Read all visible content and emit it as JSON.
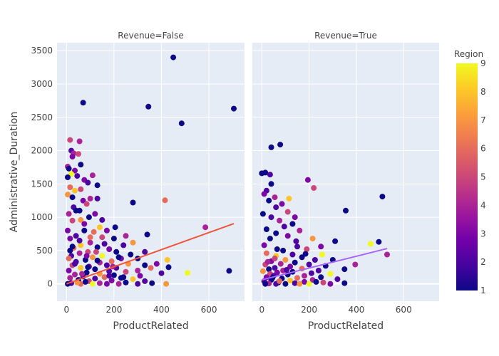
{
  "chart_data": {
    "type": "scatter",
    "xlabel": "ProductRelated",
    "ylabel": "Administrative_Duration",
    "xlim": [
      -40,
      750
    ],
    "ylim": [
      -260,
      3620
    ],
    "xticks": [
      0,
      200,
      400,
      600
    ],
    "yticks": [
      0,
      500,
      1000,
      1500,
      2000,
      2500,
      3000,
      3500
    ],
    "grid": true,
    "colorbar": {
      "title": "Region",
      "min": 1,
      "max": 9,
      "ticks": [
        1,
        2,
        3,
        4,
        5,
        6,
        7,
        8,
        9
      ]
    },
    "colors": {
      "plot_bg": "#e5ecf6",
      "grid": "#ffffff",
      "colorscale": [
        "#0d0887",
        "#46039f",
        "#7201a8",
        "#9c179e",
        "#bd3786",
        "#d8576b",
        "#ed7953",
        "#fb9f3a",
        "#fdca26",
        "#f0f921"
      ]
    },
    "facets": [
      {
        "title": "Revenue=False",
        "trendline": {
          "x": [
            0,
            705
          ],
          "y": [
            0,
            905
          ],
          "color": "#ef553b"
        },
        "points": [
          [
            450,
            3400,
            1
          ],
          [
            70,
            2720,
            1
          ],
          [
            345,
            2660,
            1
          ],
          [
            705,
            2630,
            1
          ],
          [
            485,
            2410,
            1
          ],
          [
            15,
            2160,
            5
          ],
          [
            55,
            2140,
            4
          ],
          [
            20,
            2000,
            2
          ],
          [
            30,
            1960,
            4
          ],
          [
            50,
            1950,
            5
          ],
          [
            25,
            1910,
            3
          ],
          [
            60,
            1790,
            1
          ],
          [
            5,
            1760,
            4
          ],
          [
            10,
            1730,
            1
          ],
          [
            35,
            1700,
            3
          ],
          [
            20,
            1650,
            9
          ],
          [
            110,
            1630,
            4
          ],
          [
            45,
            1620,
            2
          ],
          [
            5,
            1600,
            1
          ],
          [
            75,
            1560,
            3
          ],
          [
            90,
            1520,
            2
          ],
          [
            130,
            1480,
            1
          ],
          [
            15,
            1450,
            6
          ],
          [
            60,
            1420,
            5
          ],
          [
            35,
            1400,
            8
          ],
          [
            130,
            1280,
            2
          ],
          [
            415,
            1255,
            6
          ],
          [
            280,
            1220,
            1
          ],
          [
            100,
            1280,
            4
          ],
          [
            5,
            1340,
            7
          ],
          [
            25,
            1300,
            1
          ],
          [
            70,
            1250,
            3
          ],
          [
            85,
            1200,
            5
          ],
          [
            30,
            1150,
            2
          ],
          [
            55,
            1100,
            1
          ],
          [
            10,
            1050,
            4
          ],
          [
            120,
            1050,
            3
          ],
          [
            95,
            1000,
            1
          ],
          [
            150,
            960,
            2
          ],
          [
            60,
            960,
            7
          ],
          [
            25,
            950,
            5
          ],
          [
            205,
            850,
            1
          ],
          [
            585,
            850,
            4
          ],
          [
            170,
            800,
            3
          ],
          [
            75,
            800,
            1
          ],
          [
            115,
            780,
            6
          ],
          [
            340,
            740,
            1
          ],
          [
            250,
            720,
            4
          ],
          [
            40,
            720,
            2
          ],
          [
            150,
            700,
            5
          ],
          [
            200,
            680,
            1
          ],
          [
            15,
            680,
            3
          ],
          [
            280,
            620,
            7
          ],
          [
            100,
            620,
            4
          ],
          [
            240,
            580,
            2
          ],
          [
            60,
            580,
            8
          ],
          [
            130,
            550,
            1
          ],
          [
            30,
            540,
            6
          ],
          [
            180,
            520,
            3
          ],
          [
            210,
            480,
            1
          ],
          [
            90,
            480,
            5
          ],
          [
            330,
            480,
            2
          ],
          [
            55,
            460,
            4
          ],
          [
            270,
            440,
            1
          ],
          [
            150,
            420,
            9
          ],
          [
            20,
            420,
            2
          ],
          [
            110,
            400,
            7
          ],
          [
            425,
            360,
            8
          ],
          [
            230,
            380,
            3
          ],
          [
            300,
            380,
            1
          ],
          [
            80,
            360,
            1
          ],
          [
            190,
            340,
            6
          ],
          [
            40,
            330,
            2
          ],
          [
            140,
            320,
            4
          ],
          [
            380,
            300,
            3
          ],
          [
            260,
            300,
            7
          ],
          [
            330,
            280,
            1
          ],
          [
            170,
            280,
            2
          ],
          [
            25,
            280,
            5
          ],
          [
            95,
            260,
            3
          ],
          [
            430,
            250,
            1
          ],
          [
            355,
            240,
            6
          ],
          [
            210,
            240,
            2
          ],
          [
            60,
            240,
            8
          ],
          [
            120,
            220,
            1
          ],
          [
            300,
            200,
            4
          ],
          [
            685,
            195,
            1
          ],
          [
            10,
            200,
            3
          ],
          [
            180,
            190,
            2
          ],
          [
            250,
            180,
            5
          ],
          [
            510,
            165,
            9
          ],
          [
            85,
            170,
            1
          ],
          [
            400,
            160,
            2
          ],
          [
            140,
            150,
            7
          ],
          [
            35,
            140,
            4
          ],
          [
            200,
            130,
            1
          ],
          [
            310,
            120,
            3
          ],
          [
            70,
            110,
            2
          ],
          [
            160,
            100,
            6
          ],
          [
            230,
            90,
            1
          ],
          [
            15,
            90,
            4
          ],
          [
            120,
            80,
            2
          ],
          [
            280,
            70,
            8
          ],
          [
            50,
            60,
            1
          ],
          [
            190,
            50,
            3
          ],
          [
            330,
            40,
            2
          ],
          [
            95,
            40,
            5
          ],
          [
            420,
            0,
            7
          ],
          [
            250,
            20,
            1
          ],
          [
            140,
            10,
            4
          ],
          [
            20,
            10,
            2
          ],
          [
            360,
            10,
            1
          ],
          [
            60,
            0,
            6
          ],
          [
            170,
            0,
            3
          ],
          [
            300,
            0,
            2
          ],
          [
            5,
            0,
            1
          ],
          [
            110,
            0,
            9
          ],
          [
            220,
            0,
            4
          ],
          [
            45,
            20,
            7
          ],
          [
            80,
            30,
            1
          ],
          [
            130,
            350,
            1
          ],
          [
            160,
            600,
            2
          ],
          [
            75,
            900,
            3
          ],
          [
            40,
            1100,
            1
          ],
          [
            100,
            700,
            6
          ],
          [
            15,
            500,
            1
          ],
          [
            35,
            300,
            2
          ],
          [
            65,
            150,
            4
          ],
          [
            5,
            800,
            3
          ],
          [
            90,
            250,
            1
          ],
          [
            125,
            480,
            5
          ],
          [
            180,
            120,
            2
          ],
          [
            220,
            400,
            1
          ],
          [
            140,
            850,
            8
          ],
          [
            55,
            650,
            2
          ],
          [
            10,
            380,
            6
          ],
          [
            25,
            560,
            1
          ],
          [
            85,
            420,
            3
          ],
          [
            195,
            260,
            4
          ],
          [
            240,
            100,
            1
          ]
        ]
      },
      {
        "title": "Revenue=True",
        "trendline": {
          "x": [
            0,
            530
          ],
          "y": [
            60,
            530
          ],
          "color": "#ab63fa"
        },
        "points": [
          [
            78,
            2090,
            1
          ],
          [
            40,
            2050,
            1
          ],
          [
            0,
            1660,
            1
          ],
          [
            15,
            1670,
            1
          ],
          [
            35,
            1640,
            2
          ],
          [
            195,
            1560,
            3
          ],
          [
            220,
            1440,
            5
          ],
          [
            40,
            1500,
            1
          ],
          [
            20,
            1400,
            2
          ],
          [
            10,
            1350,
            3
          ],
          [
            55,
            1300,
            4
          ],
          [
            115,
            1280,
            8
          ],
          [
            510,
            1310,
            1
          ],
          [
            30,
            1250,
            1
          ],
          [
            85,
            1200,
            3
          ],
          [
            60,
            1150,
            2
          ],
          [
            355,
            1100,
            1
          ],
          [
            110,
            1080,
            5
          ],
          [
            5,
            1050,
            1
          ],
          [
            140,
            1000,
            3
          ],
          [
            40,
            1000,
            2
          ],
          [
            75,
            950,
            4
          ],
          [
            130,
            900,
            1
          ],
          [
            95,
            860,
            2
          ],
          [
            20,
            820,
            1
          ],
          [
            160,
            800,
            4
          ],
          [
            60,
            760,
            1
          ],
          [
            110,
            720,
            3
          ],
          [
            35,
            680,
            1
          ],
          [
            215,
            680,
            7
          ],
          [
            310,
            640,
            1
          ],
          [
            495,
            630,
            1
          ],
          [
            460,
            600,
            9
          ],
          [
            250,
            560,
            3
          ],
          [
            150,
            560,
            2
          ],
          [
            530,
            440,
            4
          ],
          [
            190,
            520,
            5
          ],
          [
            90,
            500,
            1
          ],
          [
            20,
            460,
            6
          ],
          [
            255,
            440,
            9
          ],
          [
            130,
            440,
            2
          ],
          [
            60,
            420,
            8
          ],
          [
            170,
            400,
            1
          ],
          [
            300,
            360,
            1
          ],
          [
            225,
            360,
            2
          ],
          [
            100,
            360,
            7
          ],
          [
            40,
            340,
            3
          ],
          [
            140,
            320,
            1
          ],
          [
            80,
            300,
            4
          ],
          [
            200,
            290,
            2
          ],
          [
            15,
            290,
            5
          ],
          [
            395,
            290,
            4
          ],
          [
            270,
            270,
            1
          ],
          [
            120,
            260,
            3
          ],
          [
            55,
            240,
            2
          ],
          [
            170,
            230,
            6
          ],
          [
            30,
            220,
            1
          ],
          [
            350,
            220,
            1
          ],
          [
            90,
            200,
            4
          ],
          [
            240,
            200,
            2
          ],
          [
            5,
            190,
            7
          ],
          [
            130,
            180,
            1
          ],
          [
            65,
            170,
            3
          ],
          [
            210,
            160,
            2
          ],
          [
            35,
            150,
            5
          ],
          [
            290,
            150,
            9
          ],
          [
            110,
            140,
            1
          ],
          [
            180,
            120,
            4
          ],
          [
            50,
            120,
            2
          ],
          [
            250,
            100,
            1
          ],
          [
            20,
            100,
            3
          ],
          [
            150,
            90,
            6
          ],
          [
            85,
            80,
            1
          ],
          [
            320,
            70,
            2
          ],
          [
            215,
            60,
            4
          ],
          [
            40,
            60,
            1
          ],
          [
            120,
            50,
            8
          ],
          [
            10,
            40,
            2
          ],
          [
            180,
            30,
            3
          ],
          [
            70,
            20,
            1
          ],
          [
            260,
            20,
            5
          ],
          [
            350,
            10,
            1
          ],
          [
            140,
            10,
            2
          ],
          [
            30,
            5,
            4
          ],
          [
            100,
            0,
            1
          ],
          [
            200,
            0,
            9
          ],
          [
            290,
            0,
            3
          ],
          [
            60,
            0,
            2
          ],
          [
            15,
            0,
            1
          ],
          [
            160,
            0,
            7
          ],
          [
            230,
            30,
            1
          ],
          [
            75,
            40,
            6
          ],
          [
            45,
            90,
            1
          ],
          [
            105,
            210,
            2
          ],
          [
            25,
            330,
            4
          ],
          [
            65,
            520,
            1
          ],
          [
            145,
            640,
            2
          ],
          [
            10,
            580,
            3
          ],
          [
            185,
            450,
            1
          ],
          [
            55,
            380,
            5
          ]
        ]
      }
    ]
  }
}
